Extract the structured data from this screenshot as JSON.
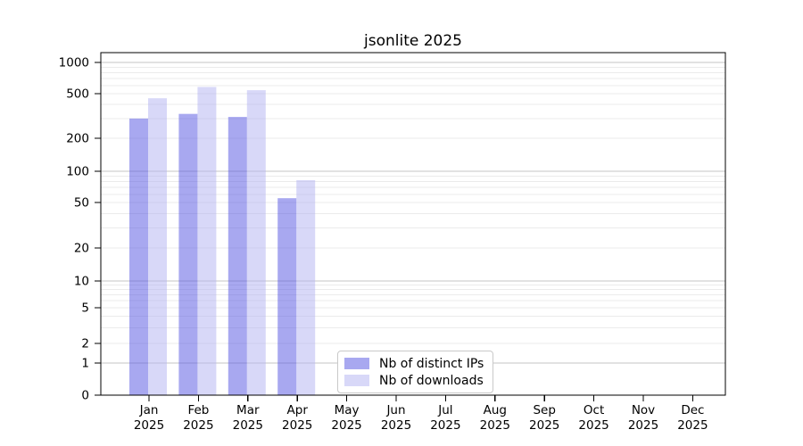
{
  "chart_data": {
    "type": "bar",
    "title": "jsonlite 2025",
    "categories": [
      {
        "month": "Jan",
        "year": "2025"
      },
      {
        "month": "Feb",
        "year": "2025"
      },
      {
        "month": "Mar",
        "year": "2025"
      },
      {
        "month": "Apr",
        "year": "2025"
      },
      {
        "month": "May",
        "year": "2025"
      },
      {
        "month": "Jun",
        "year": "2025"
      },
      {
        "month": "Jul",
        "year": "2025"
      },
      {
        "month": "Aug",
        "year": "2025"
      },
      {
        "month": "Sep",
        "year": "2025"
      },
      {
        "month": "Oct",
        "year": "2025"
      },
      {
        "month": "Nov",
        "year": "2025"
      },
      {
        "month": "Dec",
        "year": "2025"
      }
    ],
    "series": [
      {
        "name": "Nb of distinct IPs",
        "key": "distinct-ips",
        "color": "rgba(81,81,225,0.5)",
        "color_over_white": "#a8a8f0",
        "values": [
          300,
          330,
          310,
          55,
          0,
          0,
          0,
          0,
          0,
          0,
          0,
          0
        ]
      },
      {
        "name": "Nb of downloads",
        "key": "downloads",
        "color": "rgba(177,177,241,0.5)",
        "color_over_white": "#d8d8f8",
        "values": [
          455,
          580,
          540,
          82,
          0,
          0,
          0,
          0,
          0,
          0,
          0,
          0
        ]
      }
    ],
    "yticks": [
      0,
      1,
      2,
      5,
      10,
      20,
      50,
      100,
      200,
      500,
      1000
    ],
    "yscale": "symlog",
    "ylim": [
      0,
      1240
    ],
    "grid": {
      "on": true,
      "minor_color": "#ebebeb",
      "major_color": "#c6c6c6",
      "major_at": [
        1,
        10,
        100,
        1000
      ]
    },
    "axis_color": "#000000",
    "legend_position": "lower-center"
  }
}
